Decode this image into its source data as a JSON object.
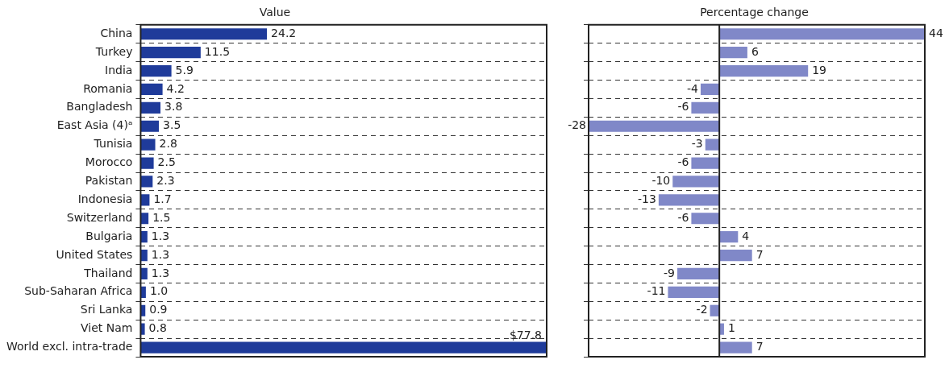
{
  "chart_data": [
    {
      "type": "bar",
      "orientation": "horizontal",
      "title": "Value",
      "tick_labels": "y",
      "grid": "y",
      "color": "#1f3b9a",
      "categories": [
        "China",
        "Turkey",
        "India",
        "Romania",
        "Bangladesh",
        "East Asia (4)ᵃ",
        "Tunisia",
        "Morocco",
        "Pakistan",
        "Indonesia",
        "Switzerland",
        "Bulgaria",
        "United States",
        "Thailand",
        "Sub-Saharan Africa",
        "Sri Lanka",
        "Viet Nam",
        "World excl. intra-trade"
      ],
      "values": [
        24.2,
        11.5,
        5.9,
        4.2,
        3.8,
        3.5,
        2.8,
        2.5,
        2.3,
        1.7,
        1.5,
        1.3,
        1.3,
        1.3,
        1.0,
        0.9,
        0.8,
        77.8
      ],
      "value_labels": [
        "24.2",
        "11.5",
        "5.9",
        "4.2",
        "3.8",
        "3.5",
        "2.8",
        "2.5",
        "2.3",
        "1.7",
        "1.5",
        "1.3",
        "1.3",
        "1.3",
        "1.0",
        "0.9",
        "0.8",
        "$77.8"
      ]
    },
    {
      "type": "bar",
      "orientation": "horizontal",
      "title": "Percentage change",
      "tick_labels": false,
      "grid": "y",
      "color": "#8088c8",
      "data_labels": true,
      "categories": [
        null,
        null,
        null,
        null,
        null,
        null,
        null,
        null,
        null,
        null,
        null,
        null,
        null,
        null,
        null,
        null,
        null,
        null
      ],
      "ref_lines": [
        {
          "axis": "x",
          "value": 0,
          "color": "#222222"
        }
      ],
      "values": [
        44,
        6,
        19,
        -4,
        -6,
        -28,
        -3,
        -6,
        -10,
        -13,
        -6,
        4,
        7,
        -9,
        -11,
        -2,
        1,
        7
      ]
    }
  ]
}
